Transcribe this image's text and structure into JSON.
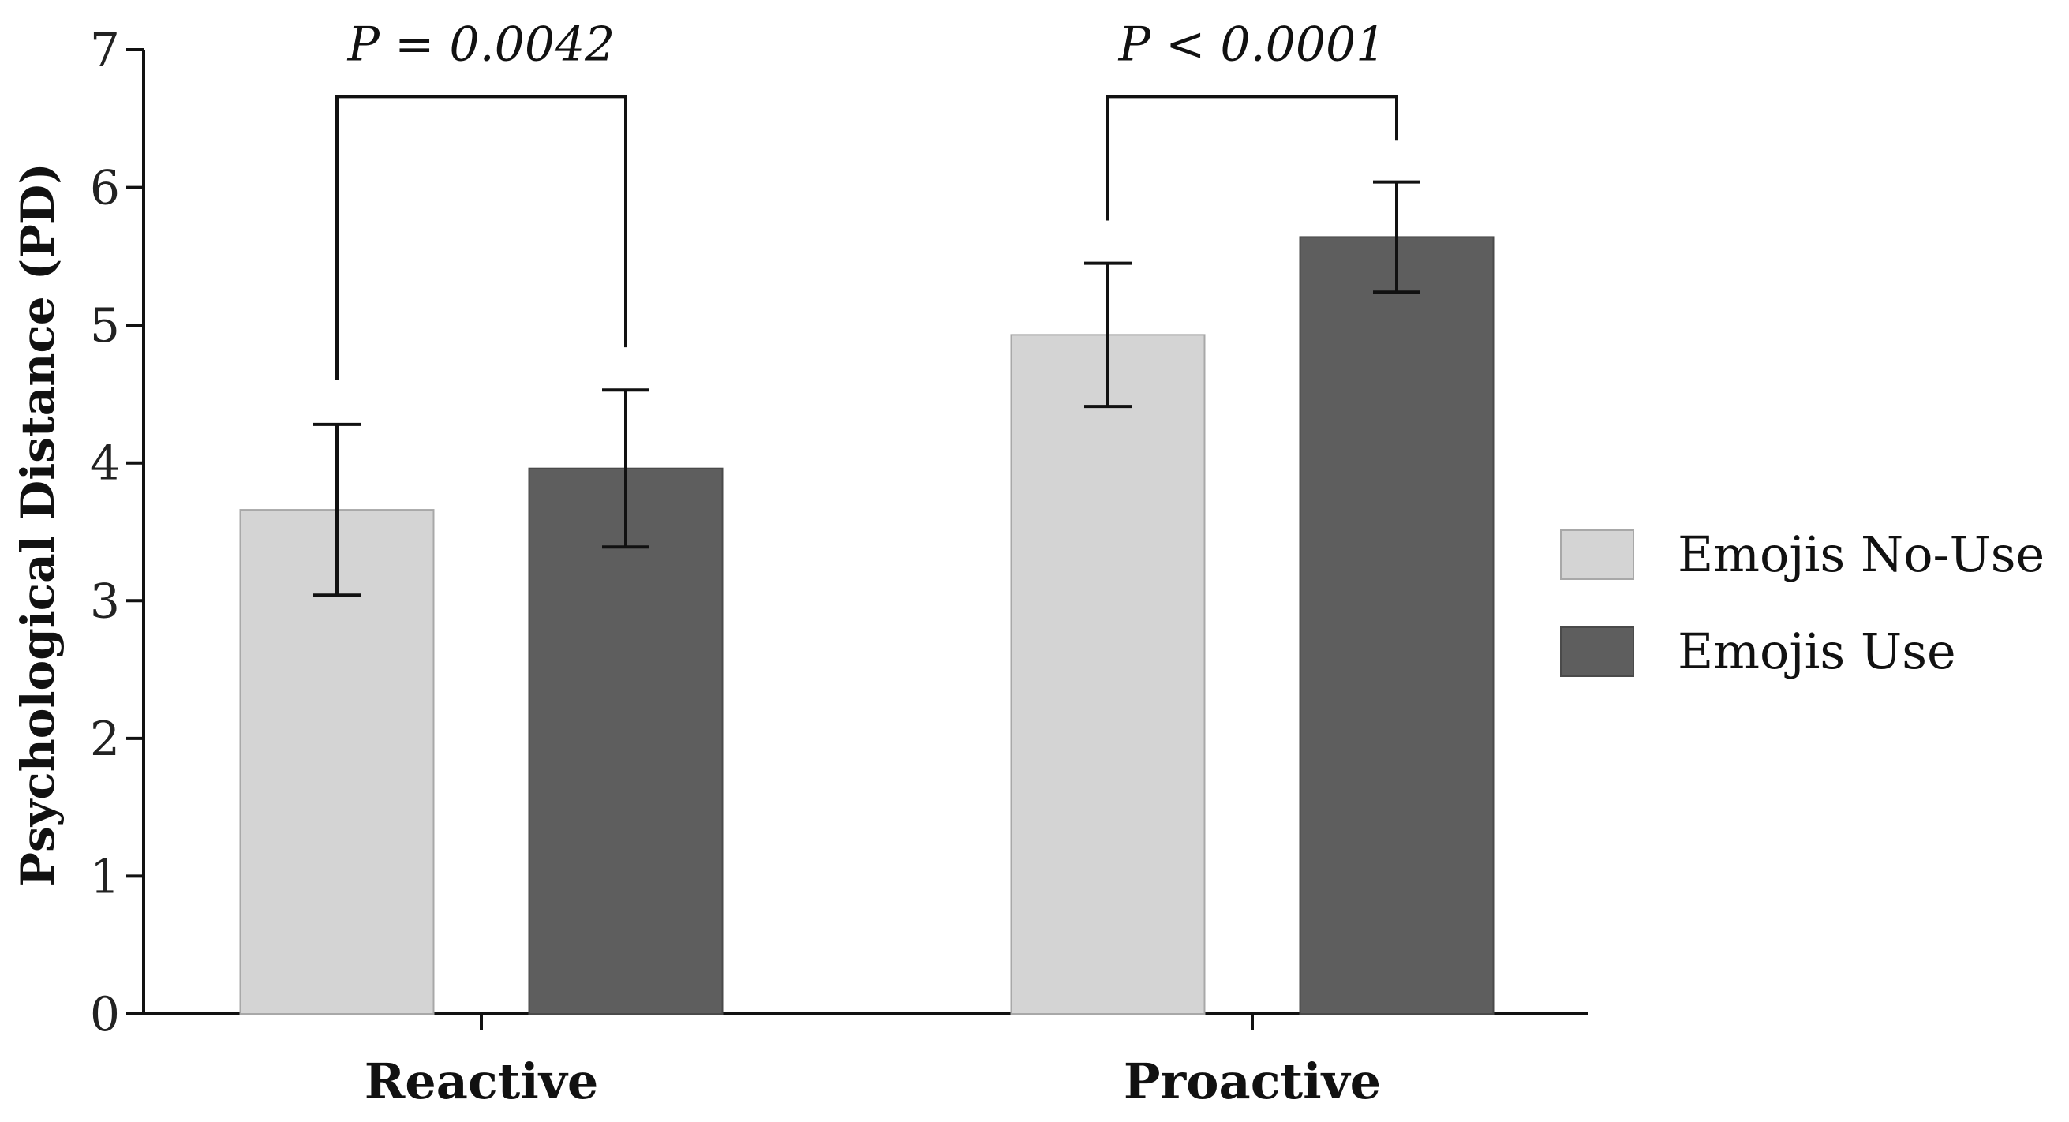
{
  "chart_data": {
    "type": "bar",
    "title": "",
    "xlabel": "",
    "ylabel": "Psychological Distance (PD)",
    "ylim": [
      0,
      7
    ],
    "yticks": [
      0,
      1,
      2,
      3,
      4,
      5,
      6,
      7
    ],
    "categories": [
      "Reactive",
      "Proactive"
    ],
    "series": [
      {
        "name": "Emojis No-Use",
        "color": "#d4d4d4",
        "values": [
          3.66,
          4.93
        ],
        "error": [
          0.62,
          0.52
        ]
      },
      {
        "name": "Emojis Use",
        "color": "#5e5e5e",
        "values": [
          3.96,
          5.64
        ],
        "error": [
          0.57,
          0.4
        ]
      }
    ],
    "annotations": [
      {
        "category_index": 0,
        "text": "P = 0.0042",
        "bracket_top": 6.66,
        "left_end": 4.6,
        "right_end": 4.84
      },
      {
        "category_index": 1,
        "text": "P < 0.0001",
        "bracket_top": 6.66,
        "left_end": 5.76,
        "right_end": 6.34
      }
    ],
    "legend_position": "right"
  }
}
